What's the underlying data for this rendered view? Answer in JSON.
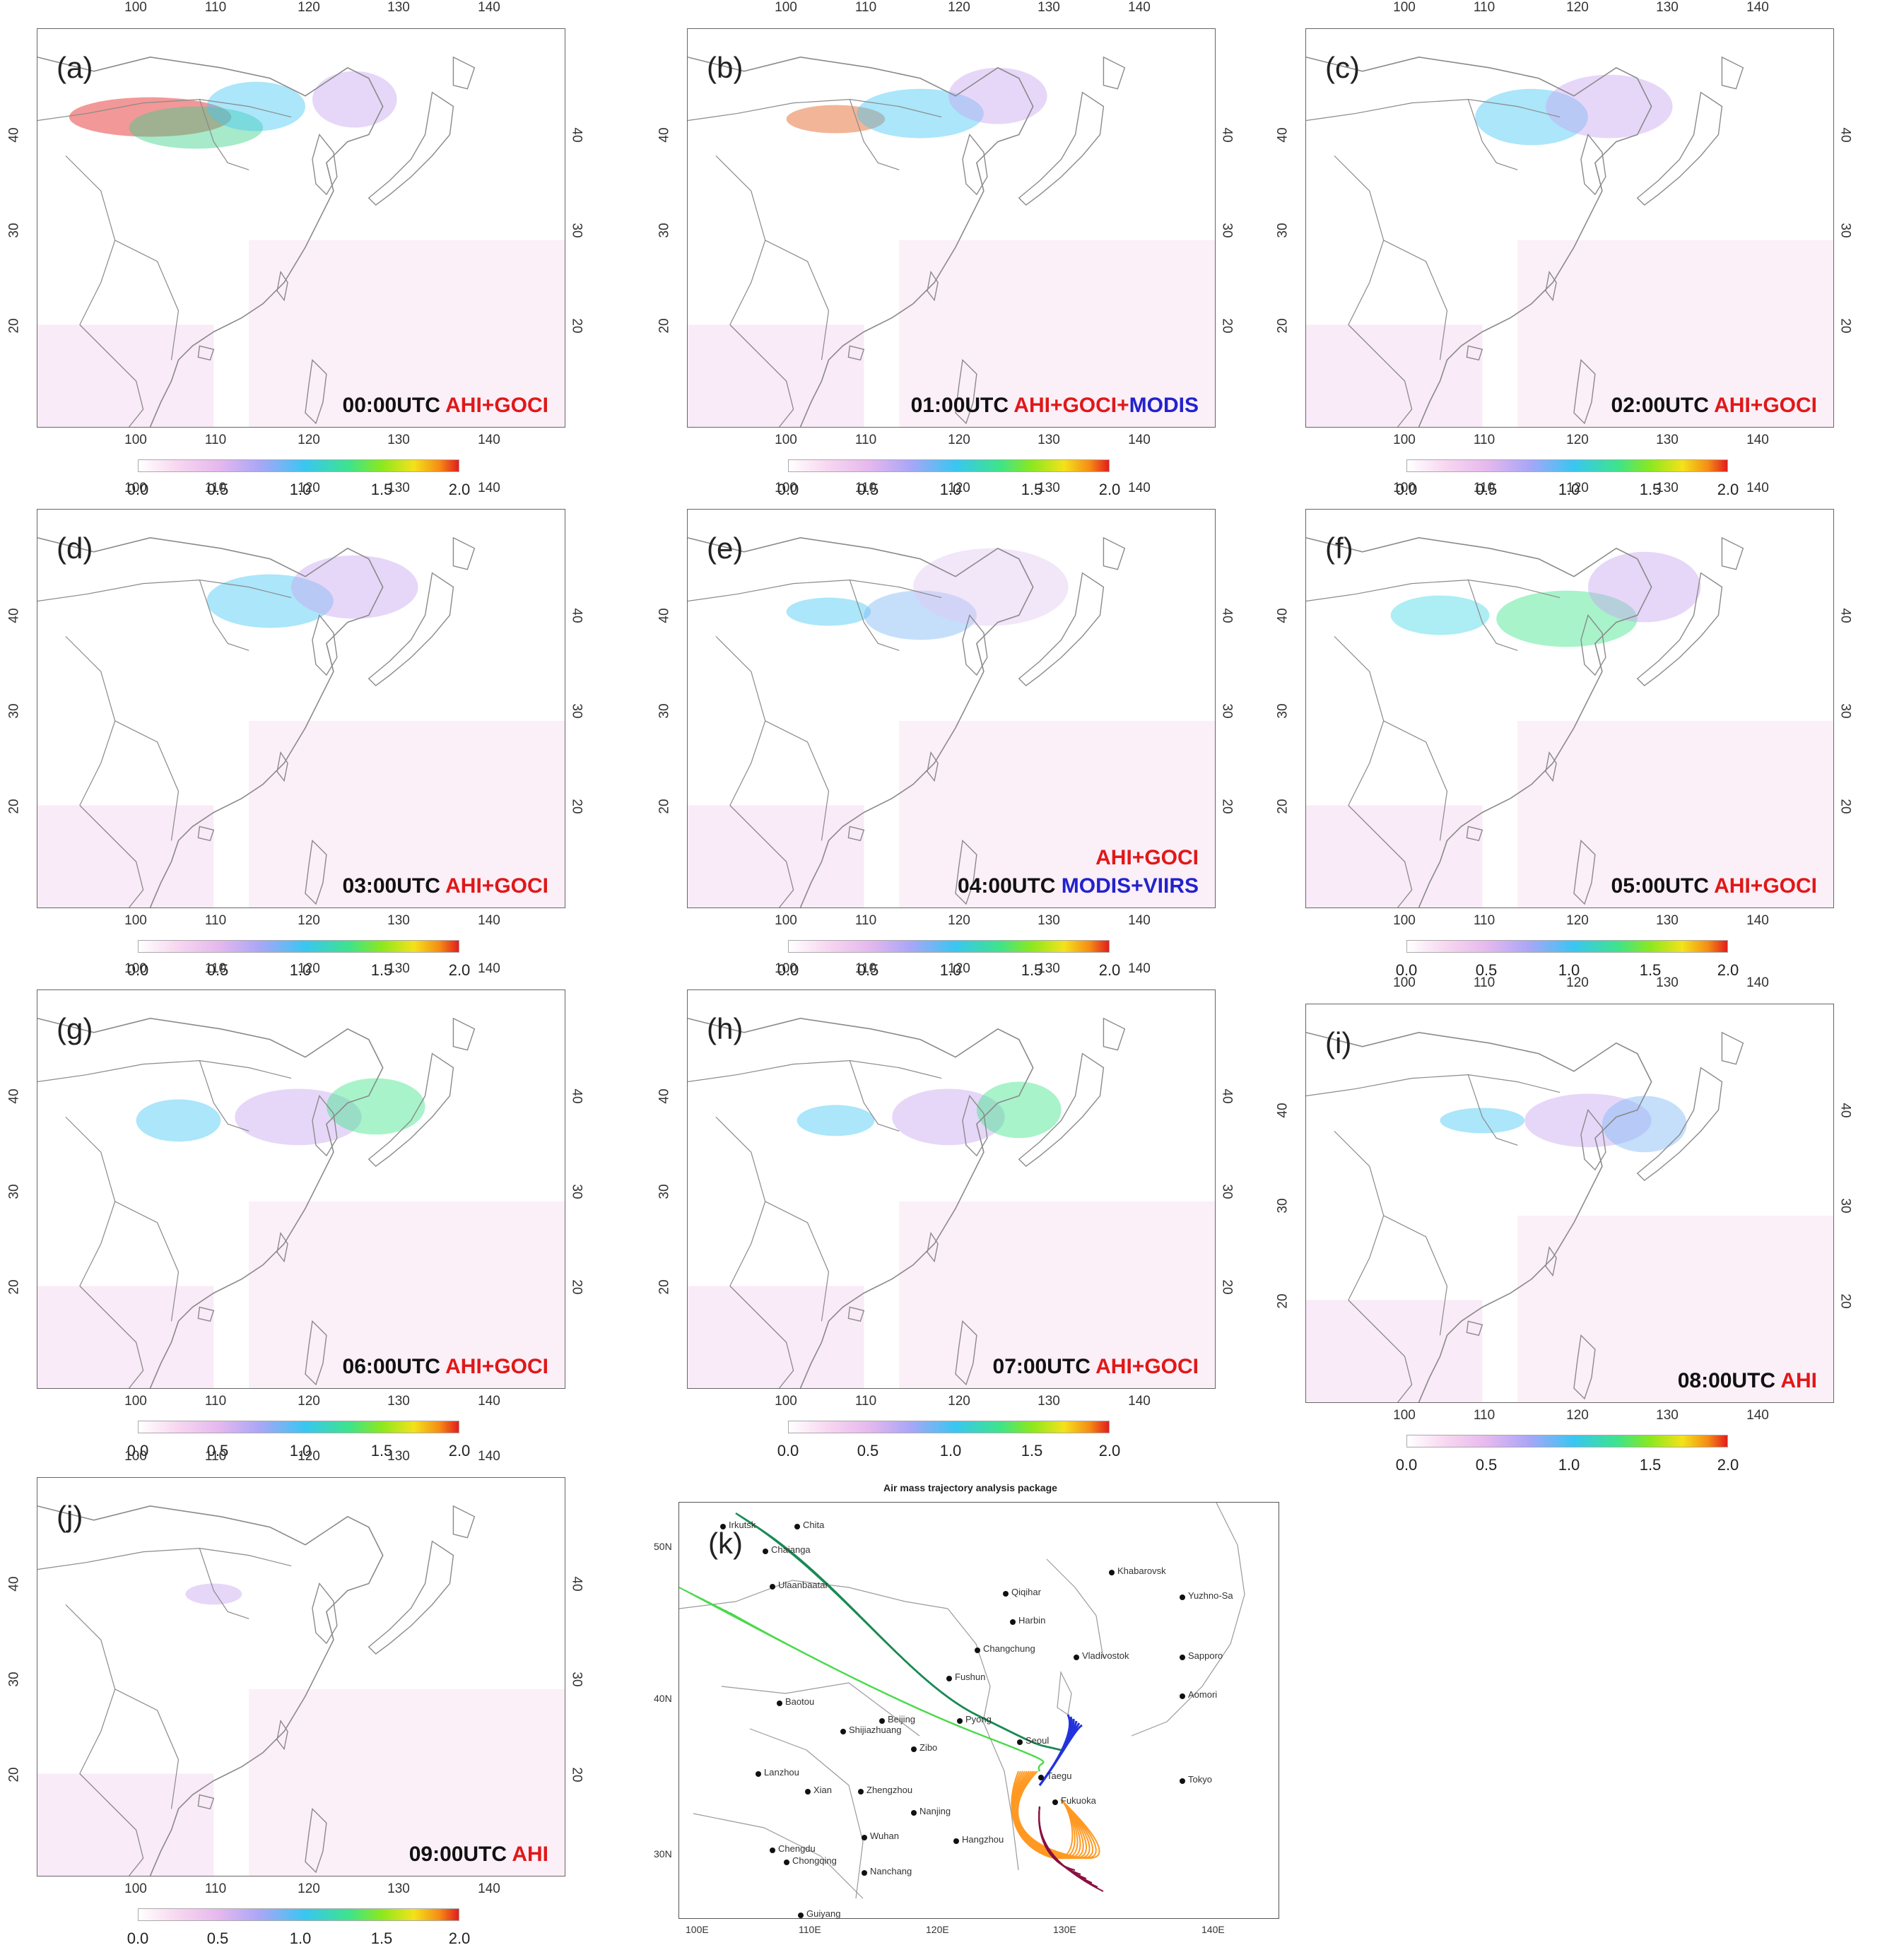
{
  "colorbar_ticks": [
    "0.0",
    "0.5",
    "1.0",
    "1.5",
    "2.0"
  ],
  "lon_ticks": [
    "100",
    "110",
    "120",
    "130",
    "140"
  ],
  "lat_ticks": [
    "40",
    "30",
    "20"
  ],
  "panels": [
    {
      "label": "(a)",
      "time": "00:00UTC",
      "sensor_red": "AHI+GOCI",
      "sensor_blue": ""
    },
    {
      "label": "(b)",
      "time": "01:00UTC",
      "sensor_red": "AHI+GOCI+",
      "sensor_blue": "MODIS"
    },
    {
      "label": "(c)",
      "time": "02:00UTC",
      "sensor_red": "AHI+GOCI",
      "sensor_blue": ""
    },
    {
      "label": "(d)",
      "time": "03:00UTC",
      "sensor_red": "AHI+GOCI",
      "sensor_blue": ""
    },
    {
      "label": "(e)",
      "time": "04:00UTC",
      "sensor_red": "AHI+GOCI",
      "sensor_blue": "MODIS+VIIRS"
    },
    {
      "label": "(f)",
      "time": "05:00UTC",
      "sensor_red": "AHI+GOCI",
      "sensor_blue": ""
    },
    {
      "label": "(g)",
      "time": "06:00UTC",
      "sensor_red": "AHI+GOCI",
      "sensor_blue": ""
    },
    {
      "label": "(h)",
      "time": "07:00UTC",
      "sensor_red": "AHI+GOCI",
      "sensor_blue": ""
    },
    {
      "label": "(i)",
      "time": "08:00UTC",
      "sensor_red": "AHI",
      "sensor_blue": ""
    },
    {
      "label": "(j)",
      "time": "09:00UTC",
      "sensor_red": "AHI",
      "sensor_blue": ""
    }
  ],
  "trajectory": {
    "label": "(k)",
    "title": "Air mass trajectory analysis package",
    "lon_ticks": [
      "100E",
      "110E",
      "120E",
      "130E",
      "140E"
    ],
    "lat_ticks": [
      "50N",
      "40N",
      "30N"
    ],
    "cities": [
      "Irkutsk",
      "Chita",
      "Chaianga",
      "Khabarovsk",
      "Ulaanbaatar",
      "Qiqihar",
      "Yuzhno-Sa",
      "Harbin",
      "Changchung",
      "Sapporo",
      "Vladivostok",
      "Fushun",
      "Aomori",
      "Baotou",
      "Beijing",
      "Pyong",
      "Shijiazhuang",
      "Seoul",
      "Zibo",
      "Lanzhou",
      "Taegu",
      "Tokyo",
      "Xian",
      "Zhengzhou",
      "Fukuoka",
      "Nanjing",
      "Wuhan",
      "Hangzhou",
      "Chengdu",
      "Chongqing",
      "Nanchang",
      "Guiyang"
    ],
    "series_colors": [
      "#1a8a55",
      "#4bd94b",
      "#2233dd",
      "#ff9922",
      "#8a1040"
    ]
  }
}
